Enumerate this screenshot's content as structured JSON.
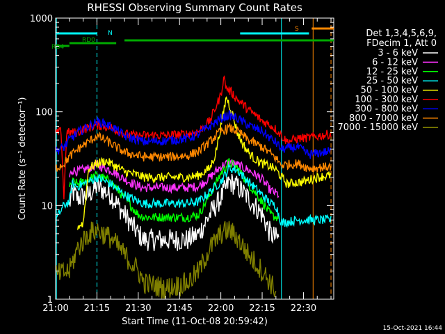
{
  "chart_data": {
    "type": "line",
    "title": "RHESSI Observing Summary Count Rates",
    "xlabel": "Start Time (11-Oct-08 20:59:42)",
    "ylabel": "Count Rate (s⁻¹ detector⁻¹)",
    "yscale": "log",
    "ylim": [
      1,
      1000
    ],
    "xlim_minutes": [
      0,
      101
    ],
    "x_ticks": [
      {
        "t": 0,
        "label": "21:00"
      },
      {
        "t": 15,
        "label": "21:15"
      },
      {
        "t": 30,
        "label": "21:30"
      },
      {
        "t": 45,
        "label": "21:45"
      },
      {
        "t": 60,
        "label": "22:00"
      },
      {
        "t": 75,
        "label": "22:15"
      },
      {
        "t": 90,
        "label": "22:30"
      }
    ],
    "y_ticks": [
      {
        "v": 1,
        "label": "1"
      },
      {
        "v": 10,
        "label": "10"
      },
      {
        "v": 100,
        "label": "100"
      },
      {
        "v": 1000,
        "label": "1000"
      }
    ],
    "legend_header": [
      "Det 1,3,4,5,6,9,",
      "FDecim 1, Att 0"
    ],
    "series": [
      {
        "name": "3 - 6 keV",
        "color": "#ffffff",
        "t": [
          5,
          6,
          8,
          12,
          15,
          20,
          25,
          30,
          32,
          40,
          48,
          52,
          56,
          60,
          63,
          66,
          70,
          75,
          78,
          80
        ],
        "values": [
          10,
          14,
          12,
          13,
          16,
          13,
          8,
          5,
          4.3,
          4.3,
          4.3,
          5,
          8,
          12,
          18,
          16,
          12,
          8,
          5,
          4.5
        ]
      },
      {
        "name": "6 - 12 keV",
        "color": "#ff33ff",
        "t": [
          5,
          6,
          8,
          12,
          15,
          20,
          25,
          30,
          32,
          40,
          48,
          52,
          56,
          60,
          63,
          66,
          70,
          75,
          78,
          80,
          81
        ],
        "values": [
          20,
          24,
          23,
          25,
          27,
          24,
          19,
          16,
          15.5,
          15.5,
          15.5,
          16,
          20,
          26,
          29,
          27,
          24,
          19,
          14.5,
          13.5,
          13
        ]
      },
      {
        "name": "12 - 25 keV",
        "color": "#00ff00",
        "t": [
          5,
          6,
          8,
          12,
          15,
          20,
          25,
          30,
          32,
          40,
          48,
          52,
          56,
          60,
          63,
          66,
          70,
          75,
          78,
          80,
          81
        ],
        "values": [
          15,
          18,
          17,
          19,
          21,
          18,
          12,
          8,
          7.5,
          7.5,
          7.5,
          8,
          13,
          22,
          29,
          25,
          17,
          11,
          8,
          7.5,
          7.5
        ]
      },
      {
        "name": "25 - 50 keV",
        "color": "#00ffff",
        "t": [
          0,
          3,
          5,
          6,
          8,
          12,
          15,
          20,
          25,
          30,
          32,
          40,
          48,
          52,
          56,
          60,
          63,
          66,
          70,
          75,
          78,
          80,
          82,
          88,
          92,
          100
        ],
        "values": [
          7,
          10,
          11,
          17,
          16,
          18,
          20,
          17,
          13,
          11,
          10.5,
          10.5,
          10.5,
          11,
          14,
          18,
          25,
          24,
          18,
          13,
          10.5,
          10,
          6.5,
          7,
          7,
          7
        ]
      },
      {
        "name": "50 - 100 keV",
        "color": "#ffff00",
        "t": [
          8,
          10,
          12,
          15,
          18,
          22,
          25,
          30,
          32,
          40,
          48,
          52,
          56,
          58,
          60,
          62,
          64,
          66,
          68,
          70,
          72,
          75,
          78,
          80,
          84,
          90,
          95,
          100
        ],
        "values": [
          6,
          6.5,
          25,
          28,
          30,
          26,
          23,
          21,
          20,
          20,
          20,
          21,
          25,
          35,
          70,
          145,
          100,
          60,
          45,
          37,
          32,
          28,
          26,
          24,
          17,
          18,
          20,
          21
        ]
      },
      {
        "name": "100 - 300 keV",
        "color": "#ff0000",
        "t": [
          0,
          2,
          3,
          4,
          8,
          10,
          15,
          20,
          25,
          30,
          32,
          40,
          48,
          52,
          56,
          58,
          60,
          61,
          62,
          64,
          66,
          68,
          70,
          72,
          75,
          78,
          80,
          84,
          88,
          92,
          100
        ],
        "values": [
          58,
          62,
          12,
          60,
          60,
          65,
          72,
          68,
          58,
          55,
          56,
          56,
          58,
          62,
          80,
          110,
          150,
          235,
          180,
          160,
          135,
          120,
          105,
          95,
          80,
          72,
          65,
          48,
          52,
          53,
          58
        ]
      },
      {
        "name": "300 - 800 keV",
        "color": "#0000ff",
        "t": [
          0,
          3,
          5,
          8,
          12,
          15,
          18,
          22,
          25,
          30,
          32,
          40,
          48,
          52,
          56,
          60,
          63,
          66,
          70,
          75,
          78,
          80,
          82,
          88,
          92,
          100
        ],
        "values": [
          38,
          42,
          50,
          60,
          70,
          78,
          75,
          65,
          55,
          50,
          48,
          49,
          52,
          58,
          70,
          85,
          92,
          85,
          72,
          62,
          52,
          47,
          40,
          42,
          35,
          38
        ]
      },
      {
        "name": "800 - 7000 keV",
        "color": "#ff8800",
        "t": [
          0,
          3,
          5,
          8,
          12,
          15,
          18,
          22,
          25,
          30,
          32,
          40,
          48,
          52,
          56,
          60,
          63,
          66,
          70,
          75,
          78,
          80,
          82,
          88,
          92,
          100
        ],
        "values": [
          25,
          28,
          33,
          40,
          48,
          55,
          50,
          42,
          37,
          34,
          33,
          33,
          34,
          38,
          48,
          62,
          67,
          62,
          50,
          42,
          36,
          32,
          27,
          28,
          25,
          26
        ]
      },
      {
        "name": "7000 - 15000 keV",
        "color": "#808000",
        "t": [
          0,
          5,
          8,
          12,
          15,
          20,
          25,
          30,
          32,
          40,
          48,
          52,
          56,
          60,
          63,
          66,
          70,
          75,
          78,
          80
        ],
        "values": [
          1.8,
          2,
          3.5,
          5,
          5.5,
          4.5,
          3,
          2,
          1.5,
          1.3,
          1.5,
          2,
          3.5,
          5,
          5.5,
          4.5,
          3,
          2,
          1.5,
          1.2
        ]
      }
    ],
    "annotations": [
      {
        "text": "N",
        "color": "#00ffff",
        "t_start": 0,
        "t_end": 15
      },
      {
        "text": "RD0",
        "color": "#00aa00",
        "t_start": 5,
        "t_end": 22
      },
      {
        "text": "RB4",
        "color": "#00aa00",
        "t_start": 0,
        "t_end": 5
      },
      {
        "text": "S",
        "color": "#ff8800",
        "t_start": 93,
        "t_end": 101
      }
    ],
    "footer": "15-Oct-2021 16:44"
  }
}
